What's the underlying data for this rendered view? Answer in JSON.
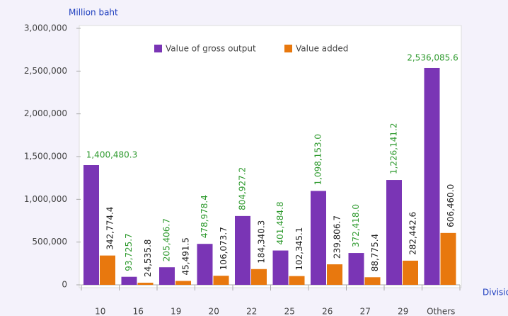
{
  "chart_data": {
    "type": "bar",
    "y_label": "Million baht",
    "x_label": "Division",
    "categories": [
      "10",
      "16",
      "19",
      "20",
      "22",
      "25",
      "26",
      "27",
      "29",
      "Others"
    ],
    "series": [
      {
        "name": "Value of gross output",
        "color": "#7a35b5",
        "values": [
          1400480.3,
          93725.7,
          205406.7,
          478978.4,
          804927.2,
          401484.8,
          1098153.0,
          372418.0,
          1226141.2,
          2536085.6
        ],
        "value_labels": [
          "1,400,480.3",
          "93,725.7",
          "205,406.7",
          "478,978.4",
          "804,927.2",
          "401,484.8",
          "1,098,153.0",
          "372,418.0",
          "1,226,141.2",
          "2,536,085.6"
        ]
      },
      {
        "name": "Value added",
        "color": "#e8780e",
        "values": [
          342774.4,
          24535.8,
          45491.5,
          106073.7,
          184340.3,
          102345.1,
          239806.7,
          88775.4,
          282442.6,
          606460.0
        ],
        "value_labels": [
          "342,774.4",
          "24,535.8",
          "45,491.5",
          "106,073.7",
          "184,340.3",
          "102,345.1",
          "239,806.7",
          "88,775.4",
          "282,442.6",
          "606,460.0"
        ]
      }
    ],
    "ylim": [
      0,
      3000000
    ],
    "yticks": [
      0,
      {
        "value": 500000,
        "label": "500,000"
      },
      {
        "value": 1000000,
        "label": "1,000,000"
      },
      {
        "value": 1500000,
        "label": "1,500,000"
      },
      {
        "value": 2000000,
        "label": "2,000,000"
      },
      {
        "value": 2500000,
        "label": "2,500,000"
      },
      {
        "value": 3000000,
        "label": "3,000,000"
      }
    ],
    "legend": "top"
  }
}
